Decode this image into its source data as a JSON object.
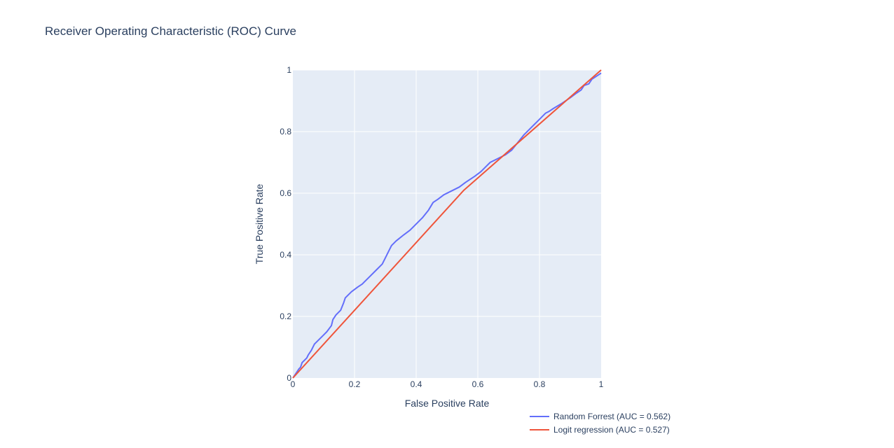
{
  "chart_data": {
    "type": "line",
    "title": "Receiver Operating Characteristic (ROC) Curve",
    "xlabel": "False Positive Rate",
    "ylabel": "True Positive Rate",
    "xlim": [
      0,
      1
    ],
    "ylim": [
      0,
      1
    ],
    "x_ticks": [
      "0",
      "0.2",
      "0.4",
      "0.6",
      "0.8",
      "1"
    ],
    "y_ticks": [
      "0",
      "0.2",
      "0.4",
      "0.6",
      "0.8",
      "1"
    ],
    "grid": true,
    "legend_position": "bottom-right",
    "plot_background": "#E5ECF6",
    "series": [
      {
        "name": "Random Forrest (AUC = 0.562)",
        "color": "#636EFA",
        "x": [
          0,
          0.01,
          0.02,
          0.025,
          0.03,
          0.035,
          0.045,
          0.05,
          0.06,
          0.07,
          0.08,
          0.09,
          0.1,
          0.11,
          0.125,
          0.13,
          0.14,
          0.155,
          0.165,
          0.17,
          0.19,
          0.21,
          0.225,
          0.23,
          0.25,
          0.27,
          0.29,
          0.3,
          0.31,
          0.32,
          0.335,
          0.36,
          0.38,
          0.39,
          0.42,
          0.44,
          0.455,
          0.47,
          0.49,
          0.51,
          0.54,
          0.56,
          0.59,
          0.61,
          0.625,
          0.64,
          0.66,
          0.69,
          0.71,
          0.73,
          0.75,
          0.78,
          0.8,
          0.82,
          0.83,
          0.845,
          0.87,
          0.9,
          0.92,
          0.935,
          0.945,
          0.96,
          0.97,
          0.985,
          1.0
        ],
        "y": [
          0,
          0.015,
          0.03,
          0.035,
          0.05,
          0.055,
          0.065,
          0.075,
          0.09,
          0.11,
          0.12,
          0.13,
          0.14,
          0.15,
          0.17,
          0.19,
          0.205,
          0.22,
          0.245,
          0.26,
          0.28,
          0.295,
          0.305,
          0.31,
          0.33,
          0.35,
          0.37,
          0.39,
          0.41,
          0.43,
          0.445,
          0.465,
          0.48,
          0.49,
          0.52,
          0.545,
          0.57,
          0.58,
          0.595,
          0.605,
          0.62,
          0.635,
          0.655,
          0.67,
          0.685,
          0.7,
          0.71,
          0.725,
          0.74,
          0.765,
          0.79,
          0.82,
          0.84,
          0.86,
          0.865,
          0.875,
          0.89,
          0.91,
          0.925,
          0.935,
          0.95,
          0.955,
          0.97,
          0.98,
          0.99
        ]
      },
      {
        "name": "Logit regression (AUC = 0.527)",
        "color": "#EF553B",
        "x": [
          0,
          0.555,
          1.0
        ],
        "y": [
          0,
          0.61,
          1.0
        ]
      }
    ]
  }
}
